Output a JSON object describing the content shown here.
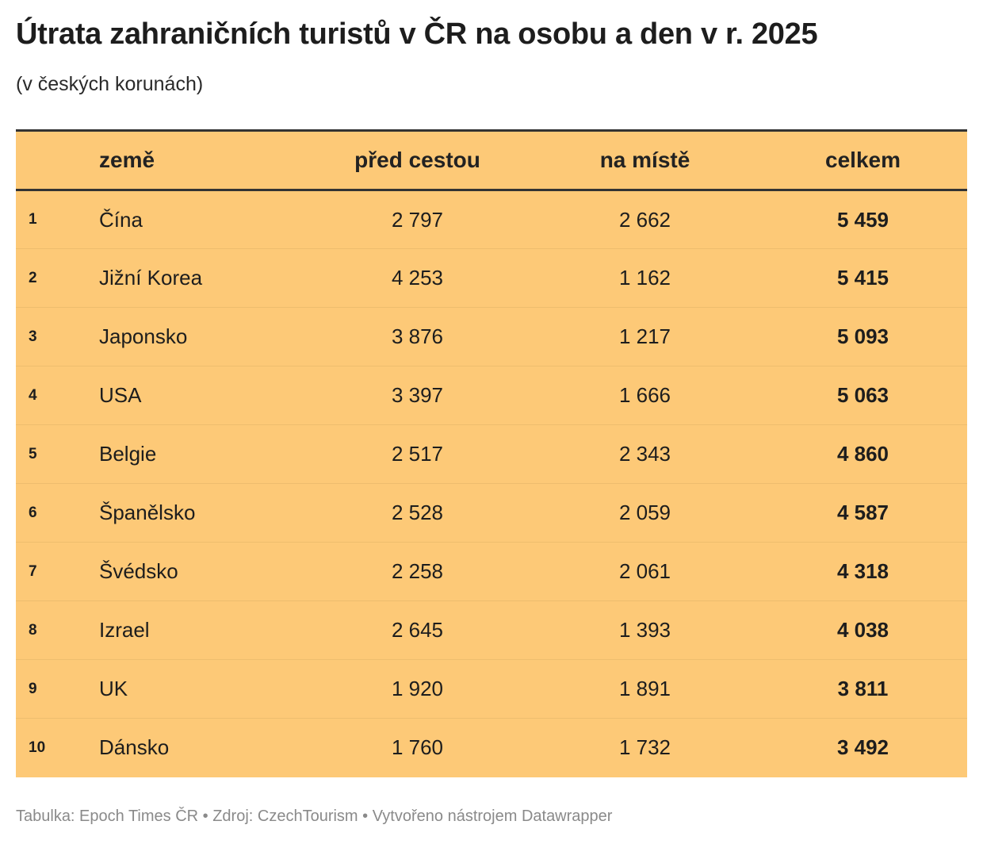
{
  "chart_data": {
    "type": "table",
    "title": "Útrata zahraničních turistů v ČR na osobu a den v r. 2025",
    "subtitle": "(v českých korunách)",
    "columns": [
      "",
      "země",
      "před cestou",
      "na místě",
      "celkem"
    ],
    "rows": [
      {
        "rank": "1",
        "country": "Čína",
        "before": "2 797",
        "onsite": "2 662",
        "total": "5 459"
      },
      {
        "rank": "2",
        "country": "Jižní Korea",
        "before": "4 253",
        "onsite": "1 162",
        "total": "5 415"
      },
      {
        "rank": "3",
        "country": "Japonsko",
        "before": "3 876",
        "onsite": "1 217",
        "total": "5 093"
      },
      {
        "rank": "4",
        "country": "USA",
        "before": "3 397",
        "onsite": "1 666",
        "total": "5 063"
      },
      {
        "rank": "5",
        "country": "Belgie",
        "before": "2 517",
        "onsite": "2 343",
        "total": "4 860"
      },
      {
        "rank": "6",
        "country": "Španělsko",
        "before": "2 528",
        "onsite": "2 059",
        "total": "4 587"
      },
      {
        "rank": "7",
        "country": "Švédsko",
        "before": "2 258",
        "onsite": "2 061",
        "total": "4 318"
      },
      {
        "rank": "8",
        "country": "Izrael",
        "before": "2 645",
        "onsite": "1 393",
        "total": "4 038"
      },
      {
        "rank": "9",
        "country": "UK",
        "before": "1 920",
        "onsite": "1 891",
        "total": "3 811"
      },
      {
        "rank": "10",
        "country": "Dánsko",
        "before": "1 760",
        "onsite": "1 732",
        "total": "3 492"
      }
    ],
    "footer": "Tabulka: Epoch Times ČR • Zdroj: CzechTourism • Vytvořeno nástrojem Datawrapper",
    "colors": {
      "table_background": "#fdc977",
      "rule": "#333333"
    }
  }
}
